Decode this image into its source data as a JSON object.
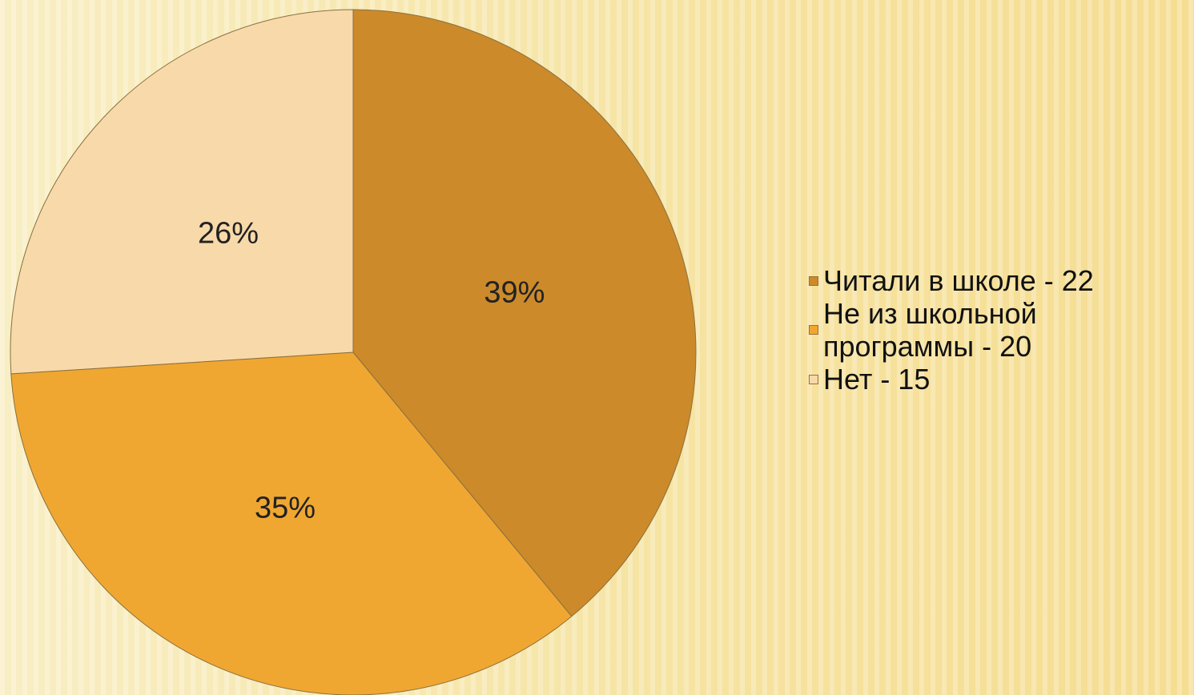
{
  "chart_data": {
    "type": "pie",
    "categories": [
      "Читали в школе - 22",
      "Не из школьной программы - 20",
      "Нет  - 15"
    ],
    "values": [
      39,
      35,
      26
    ],
    "value_labels": [
      "39%",
      "35%",
      "26%"
    ],
    "colors": [
      "#cc8a2a",
      "#f0a731",
      "#f8d9a9"
    ],
    "legend": "right"
  }
}
